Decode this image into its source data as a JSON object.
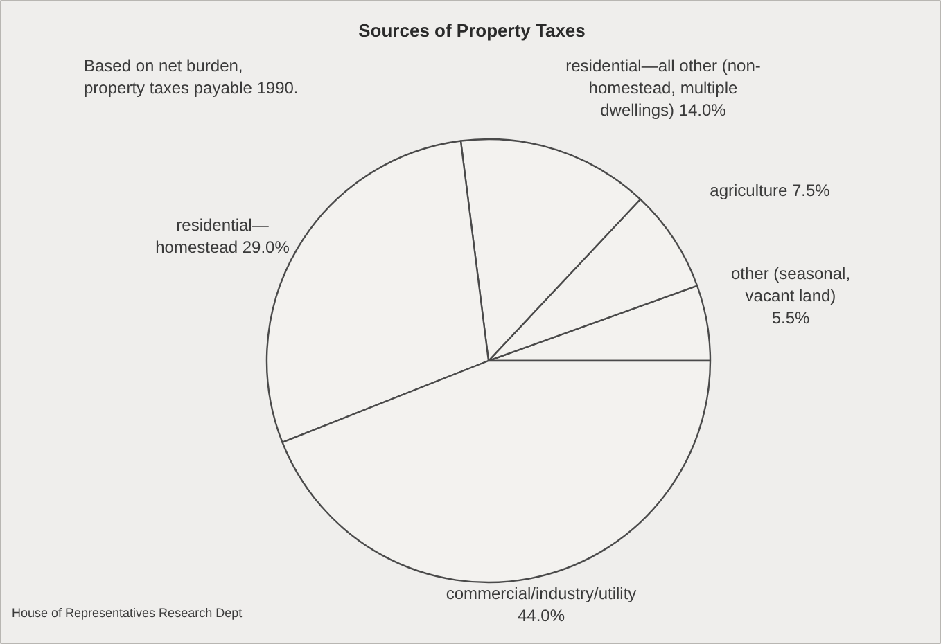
{
  "chart_data": {
    "type": "pie",
    "title": "Sources of Property Taxes",
    "categories": [
      "other (seasonal,\nvacant land)",
      "agriculture",
      "residential—all other (non-\nhomestead, multiple\ndwellings)",
      "residential—\nhomestead",
      "commercial/industry/utility"
    ],
    "values": [
      5.5,
      7.5,
      14.0,
      29.0,
      44.0
    ],
    "colors": [
      "#f3f2ef",
      "#f3f2ef",
      "#f3f2ef",
      "#f3f2ef",
      "#f3f2ef"
    ],
    "value_labels": [
      "5.5%",
      "7.5%",
      "14.0%",
      "29.0%",
      "44.0%"
    ],
    "annotations": [
      "Based on net burden,\nproperty taxes payable 1990.",
      "House of Representatives Research Dept"
    ]
  }
}
